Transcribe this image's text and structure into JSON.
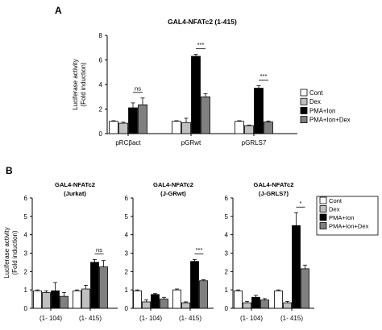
{
  "chart_data": [
    {
      "panel": "A",
      "type": "bar",
      "title": "GAL4-NFATc2 (1-415)",
      "ylabel": [
        "Luciferase activity",
        "(Fold induction)"
      ],
      "ylim": [
        0,
        8
      ],
      "yticks": [
        0,
        2,
        4,
        6,
        8
      ],
      "categories": [
        "pRCβact",
        "pGRwt",
        "pGRLS7"
      ],
      "series": [
        {
          "name": "Cont",
          "color": "#ffffff",
          "values": [
            1.0,
            1.0,
            1.0
          ],
          "errors": [
            0.05,
            0.05,
            0.05
          ]
        },
        {
          "name": "Dex",
          "color": "#c0c0c0",
          "values": [
            0.85,
            0.9,
            0.65
          ],
          "errors": [
            0.08,
            0.35,
            0.05
          ]
        },
        {
          "name": "PMA+Ion",
          "color": "#000000",
          "values": [
            2.1,
            6.3,
            3.7
          ],
          "errors": [
            0.4,
            0.15,
            0.2
          ]
        },
        {
          "name": "PMA+Ion+Dex",
          "color": "#808080",
          "values": [
            2.35,
            3.0,
            0.95
          ],
          "errors": [
            0.55,
            0.25,
            0.08
          ]
        }
      ],
      "significance": [
        {
          "group": 0,
          "text": "ns"
        },
        {
          "group": 1,
          "text": "***"
        },
        {
          "group": 2,
          "text": "***"
        }
      ],
      "legend": "right"
    },
    {
      "panel": "B",
      "type": "bar",
      "title": [
        "GAL4-NFATc2",
        "(Jurkat)"
      ],
      "ylabel": [
        "Luciferase activity",
        "(Fold induction)"
      ],
      "ylim": [
        0,
        6
      ],
      "yticks": [
        0,
        1,
        2,
        3,
        4,
        5,
        6
      ],
      "categories": [
        "(1- 104)",
        "(1- 415)"
      ],
      "series": [
        {
          "name": "Cont",
          "color": "#ffffff",
          "values": [
            0.95,
            0.95
          ],
          "errors": [
            0.05,
            0.05
          ]
        },
        {
          "name": "Dex",
          "color": "#c0c0c0",
          "values": [
            0.85,
            1.05
          ],
          "errors": [
            0.1,
            0.2
          ]
        },
        {
          "name": "PMA+Ion",
          "color": "#000000",
          "values": [
            0.95,
            2.5
          ],
          "errors": [
            0.45,
            0.15
          ]
        },
        {
          "name": "PMA+Ion+Dex",
          "color": "#808080",
          "values": [
            0.65,
            2.25
          ],
          "errors": [
            0.2,
            0.35
          ]
        }
      ],
      "significance": [
        {
          "group": 1,
          "text": "ns"
        }
      ]
    },
    {
      "panel": "B",
      "type": "bar",
      "title": [
        "GAL4-NFATc2",
        "(J-GRwt)"
      ],
      "ylim": [
        0,
        6
      ],
      "yticks": [
        0,
        1,
        2,
        3,
        4,
        5,
        6
      ],
      "categories": [
        "(1- 104)",
        "(1- 415)"
      ],
      "series": [
        {
          "name": "Cont",
          "color": "#ffffff",
          "values": [
            0.95,
            1.0
          ],
          "errors": [
            0.05,
            0.05
          ]
        },
        {
          "name": "Dex",
          "color": "#c0c0c0",
          "values": [
            0.35,
            0.3
          ],
          "errors": [
            0.1,
            0.05
          ]
        },
        {
          "name": "PMA+Ion",
          "color": "#000000",
          "values": [
            0.75,
            2.55
          ],
          "errors": [
            0.05,
            0.1
          ]
        },
        {
          "name": "PMA+Ion+Dex",
          "color": "#808080",
          "values": [
            0.5,
            1.5
          ],
          "errors": [
            0.1,
            0.05
          ]
        }
      ],
      "significance": [
        {
          "group": 1,
          "text": "***"
        }
      ]
    },
    {
      "panel": "B",
      "type": "bar",
      "title": [
        "GAL4-NFATc2",
        "(J-GRLS7)"
      ],
      "ylim": [
        0,
        6
      ],
      "yticks": [
        0,
        1,
        2,
        3,
        4,
        5,
        6
      ],
      "categories": [
        "(1- 104)",
        "(1- 415)"
      ],
      "series": [
        {
          "name": "Cont",
          "color": "#ffffff",
          "values": [
            0.95,
            0.95
          ],
          "errors": [
            0.05,
            0.05
          ]
        },
        {
          "name": "Dex",
          "color": "#c0c0c0",
          "values": [
            0.3,
            0.3
          ],
          "errors": [
            0.08,
            0.08
          ]
        },
        {
          "name": "PMA+Ion",
          "color": "#000000",
          "values": [
            0.6,
            4.5
          ],
          "errors": [
            0.1,
            0.7
          ]
        },
        {
          "name": "PMA+Ion+Dex",
          "color": "#808080",
          "values": [
            0.45,
            2.15
          ],
          "errors": [
            0.08,
            0.2
          ]
        }
      ],
      "significance": [
        {
          "group": 1,
          "text": "*"
        }
      ],
      "legend": "right"
    }
  ]
}
